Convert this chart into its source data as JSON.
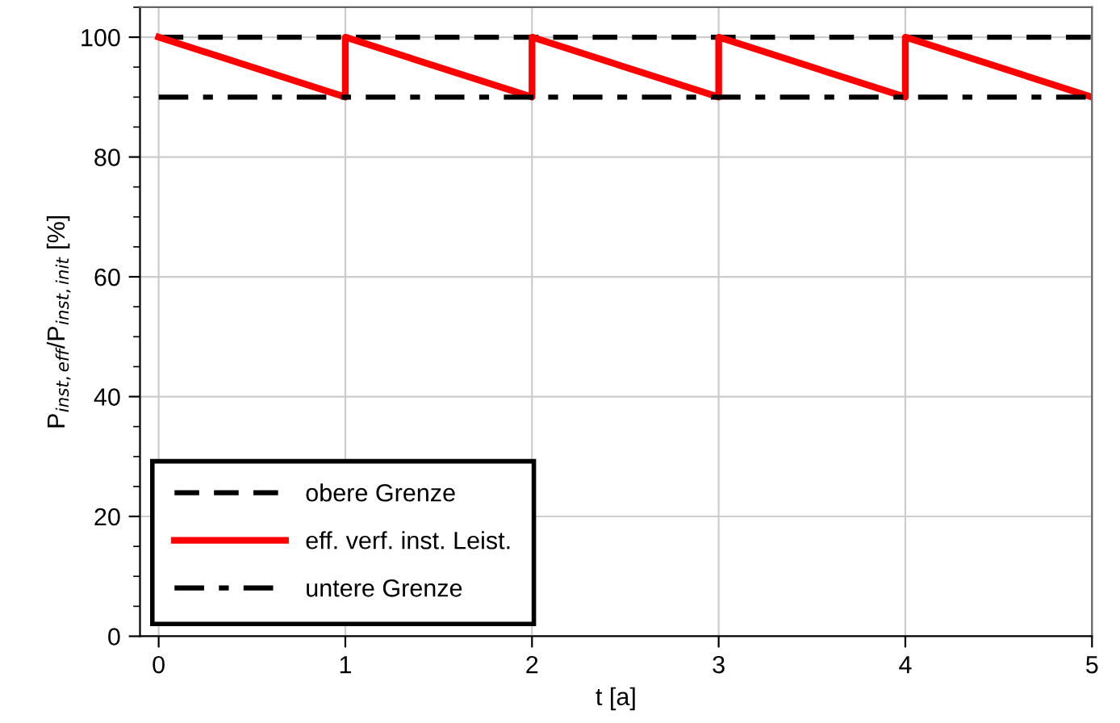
{
  "chart_data": {
    "type": "line",
    "xlabel": "t [a]",
    "ylabel": "P$_{inst,eff}$/P$_{inst,init}$ [%]",
    "xlim": [
      -0.1,
      5
    ],
    "xticks": [
      0,
      1,
      2,
      3,
      4,
      5
    ],
    "ylim": [
      0,
      105
    ],
    "yticks": [
      0,
      20,
      40,
      60,
      80,
      100
    ],
    "grid": true,
    "legend": "bottom left",
    "marker": "none",
    "series": [
      {
        "name": "obere Grenze",
        "color": "#000000",
        "line_style": "dashed",
        "x": [
          0,
          5
        ],
        "values": [
          100,
          100
        ]
      },
      {
        "name": "eff. verf. inst. Leist.",
        "color": "#ff0000",
        "line_style": "solid",
        "x": [
          0,
          1,
          1,
          2,
          2,
          3,
          3,
          4,
          4,
          5
        ],
        "values": [
          100,
          90,
          100,
          90,
          100,
          90,
          100,
          90,
          100,
          90
        ]
      },
      {
        "name": "untere Grenze",
        "color": "#000000",
        "line_style": "dashdot",
        "x": [
          0,
          5
        ],
        "values": [
          90,
          90
        ]
      }
    ]
  }
}
